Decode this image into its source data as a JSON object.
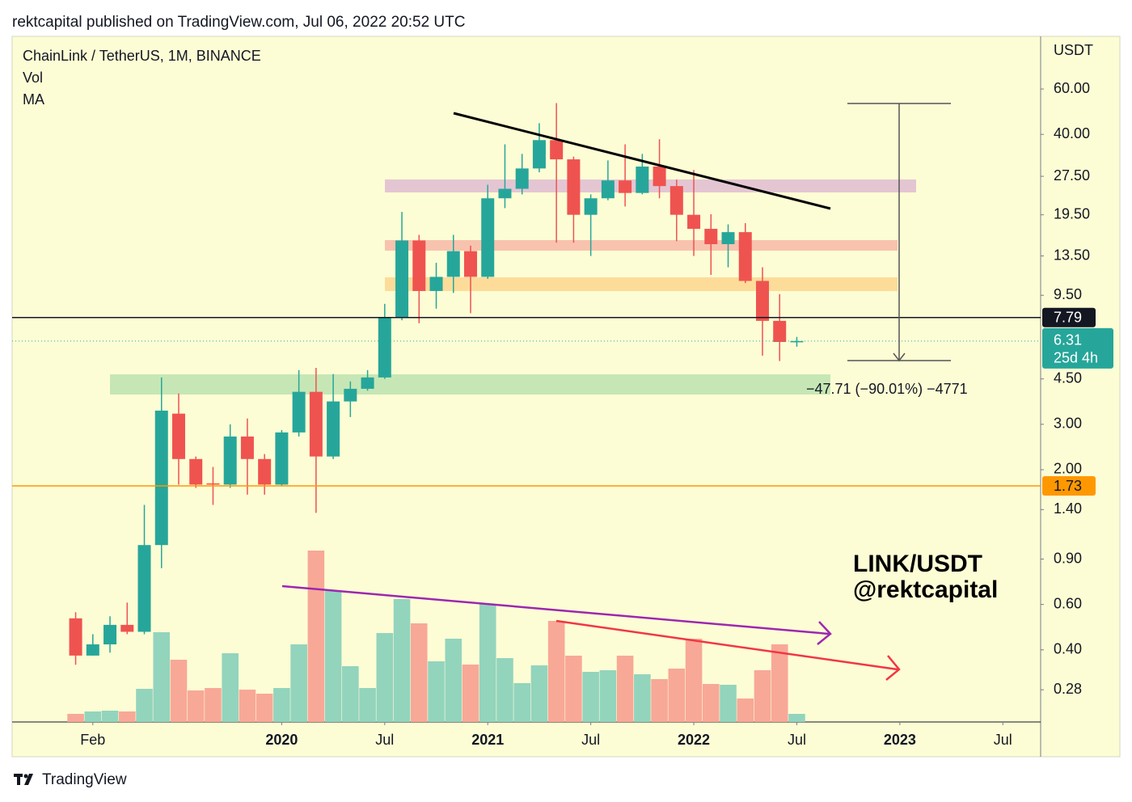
{
  "header": {
    "published": "rektcapital published on TradingView.com, Jul 06, 2022 20:52 UTC"
  },
  "footer": {
    "logo": "TradingView"
  },
  "chart_data": {
    "type": "candlestick",
    "title": "ChainLink / TetherUS, 1M, BINANCE",
    "indicators": [
      "Vol",
      "MA"
    ],
    "y_unit": "USDT",
    "log_scale": true,
    "grid": false,
    "ylim": [
      0.21,
      96
    ],
    "yticks": [
      {
        "value": 60,
        "label": "60.00"
      },
      {
        "value": 40,
        "label": "40.00"
      },
      {
        "value": 27.5,
        "label": "27.50"
      },
      {
        "value": 19.5,
        "label": "19.50"
      },
      {
        "value": 13.5,
        "label": "13.50"
      },
      {
        "value": 9.5,
        "label": "9.50"
      },
      {
        "value": 4.5,
        "label": "4.50"
      },
      {
        "value": 3,
        "label": "3.00"
      },
      {
        "value": 2,
        "label": "2.00"
      },
      {
        "value": 1.4,
        "label": "1.40"
      },
      {
        "value": 0.9,
        "label": "0.90"
      },
      {
        "value": 0.6,
        "label": "0.60"
      },
      {
        "value": 0.4,
        "label": "0.40"
      },
      {
        "value": 0.28,
        "label": "0.28"
      }
    ],
    "xlim": [
      -3.7,
      56.2
    ],
    "xticks": [
      {
        "value": 1,
        "label": "Feb"
      },
      {
        "value": 12,
        "label": "2020"
      },
      {
        "value": 18,
        "label": "Jul"
      },
      {
        "value": 24,
        "label": "2021"
      },
      {
        "value": 30,
        "label": "Jul"
      },
      {
        "value": 36,
        "label": "2022"
      },
      {
        "value": 42,
        "label": "Jul"
      },
      {
        "value": 48,
        "label": "2023"
      },
      {
        "value": 54,
        "label": "Jul"
      }
    ],
    "up_color": "#26a69a",
    "down_color": "#ef5350",
    "open": [
      0.53,
      0.38,
      0.42,
      0.5,
      0.47,
      1.02,
      3.3,
      2.2,
      1.77,
      1.75,
      2.69,
      2.2,
      1.75,
      2.79,
      4.01,
      2.25,
      3.68,
      4.12,
      4.56,
      7.78,
      15.5,
      9.87,
      11.2,
      14.1,
      11.2,
      22.6,
      24.6,
      29.5,
      38.0,
      32.0,
      19.5,
      22.6,
      26.5,
      23.7,
      30.0,
      25.2,
      19.5,
      17.2,
      15.0,
      16.7,
      10.8,
      7.56,
      6.26
    ],
    "high": [
      0.56,
      0.46,
      0.54,
      0.61,
      1.46,
      4.56,
      3.95,
      2.25,
      2.05,
      3.0,
      3.16,
      2.3,
      2.85,
      4.87,
      4.97,
      4.7,
      4.4,
      4.87,
      8.8,
      20.0,
      16.3,
      12.7,
      16.3,
      14.8,
      25.5,
      36.6,
      33.6,
      44.2,
      52.9,
      32.8,
      23.4,
      31.7,
      36.6,
      33.6,
      38.3,
      26.7,
      29.1,
      19.6,
      17.9,
      18.1,
      12.2,
      9.6,
      6.55
    ],
    "low": [
      0.35,
      0.38,
      0.39,
      0.46,
      0.46,
      0.83,
      1.75,
      1.7,
      1.46,
      1.7,
      1.6,
      1.6,
      1.73,
      2.69,
      1.36,
      2.2,
      3.2,
      4.05,
      4.5,
      7.6,
      7.4,
      8.43,
      9.7,
      8.1,
      11.0,
      20.7,
      23.4,
      28.5,
      15.2,
      15.2,
      13.5,
      22.2,
      21.0,
      23.4,
      22.6,
      15.4,
      13.5,
      11.4,
      12.2,
      10.6,
      5.54,
      5.28,
      6.0
    ],
    "close": [
      0.38,
      0.42,
      0.5,
      0.47,
      1.02,
      3.39,
      2.2,
      1.75,
      1.75,
      2.69,
      2.2,
      1.75,
      2.79,
      4.01,
      2.25,
      3.68,
      4.12,
      4.56,
      7.78,
      15.5,
      9.87,
      11.2,
      14.1,
      11.2,
      22.6,
      24.6,
      29.5,
      38.0,
      32.0,
      19.5,
      22.6,
      26.5,
      23.7,
      30.0,
      25.2,
      19.5,
      17.2,
      15.0,
      16.7,
      10.8,
      7.56,
      6.26,
      6.31
    ],
    "volume": {
      "up_color": "#93d4bd",
      "down_color": "#f8a897",
      "values": [
        10,
        13,
        14,
        13,
        41,
        111,
        77,
        39,
        42,
        85,
        40,
        35,
        42,
        96,
        212,
        162,
        69,
        42,
        110,
        152,
        122,
        75,
        103,
        71,
        146,
        79,
        48,
        70,
        125,
        82,
        62,
        64,
        82,
        59,
        53,
        66,
        103,
        47,
        46,
        29,
        64,
        96,
        10
      ]
    },
    "price_lines": [
      {
        "value": 7.79,
        "color": "#131722"
      },
      {
        "value": 1.73,
        "color": "#ff9800"
      }
    ],
    "last_price": {
      "value": 6.31,
      "countdown": "25d 4h",
      "color": "#26a69a"
    },
    "annotations": [
      "−47.71 (−90.01%) −4771",
      "LINK/USDT",
      "@rektcapital"
    ]
  }
}
